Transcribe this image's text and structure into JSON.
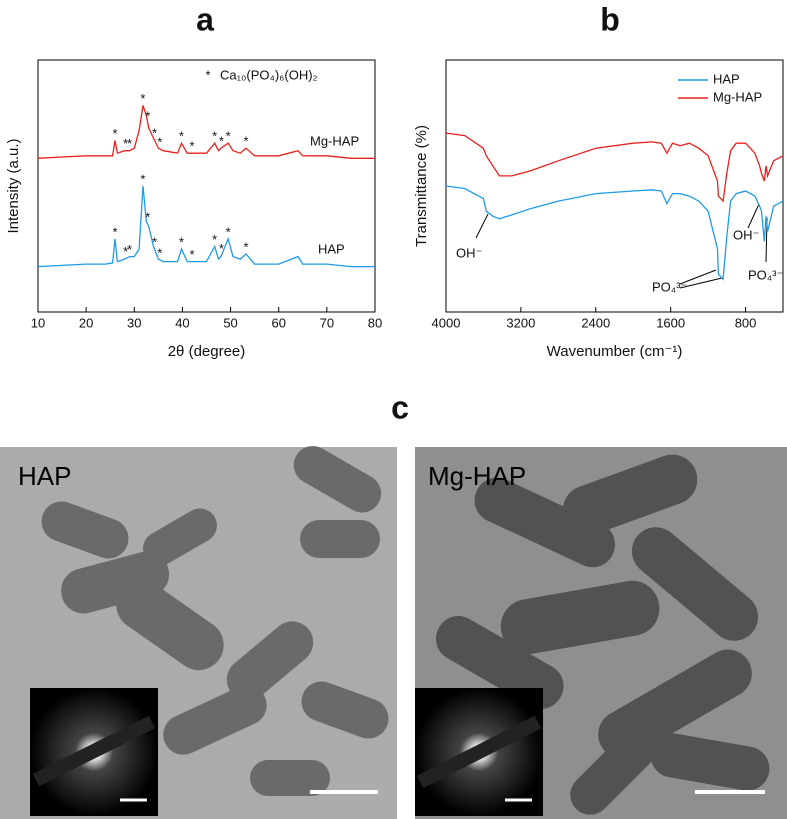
{
  "chart_data": [
    {
      "type": "line",
      "title": "a",
      "x_label": "2θ (degree)",
      "y_label": "Intensity (a.u.)",
      "xlim": [
        10,
        80
      ],
      "xticks": [
        10,
        20,
        30,
        40,
        50,
        60,
        70,
        80
      ],
      "ylim": [
        0,
        100
      ],
      "x": [
        10,
        15,
        20,
        24,
        25.5,
        26,
        26.5,
        28,
        29,
        30,
        31,
        31.8,
        32.5,
        33,
        34,
        35,
        36,
        39,
        39.8,
        41,
        45,
        46.7,
        47.5,
        48,
        49.5,
        50.5,
        52,
        53.2,
        55,
        60,
        64,
        65,
        70,
        75,
        80
      ],
      "series": [
        {
          "name": "HAP",
          "color": "#1f9be6",
          "values": [
            18,
            18.5,
            19,
            19,
            19.5,
            29,
            20,
            21,
            22,
            22,
            25,
            50,
            36,
            34,
            26,
            21,
            20,
            20,
            25,
            20,
            20,
            26,
            21,
            22,
            29,
            22,
            21,
            23,
            19,
            19,
            22,
            19,
            19,
            18,
            18
          ]
        },
        {
          "name": "Mg-HAP",
          "color": "#e8201c",
          "values": [
            61,
            61.5,
            62,
            62,
            62,
            68,
            63,
            64,
            64,
            65,
            72,
            82,
            78,
            73,
            69,
            65,
            64,
            63,
            67,
            63,
            63,
            67,
            64,
            65,
            67,
            64,
            63,
            65,
            62,
            62,
            64,
            62,
            62,
            61,
            61
          ]
        }
      ],
      "peak_marker": "*",
      "marker_legend": "Ca₁₀(PO₄)₆(OH)₂",
      "peak_positions": [
        26,
        28.2,
        29,
        31.8,
        32.8,
        34.2,
        35.3,
        39.8,
        42,
        46.7,
        48.1,
        49.5,
        53.2
      ]
    },
    {
      "type": "line",
      "title": "b",
      "x_label": "Wavenumber (cm⁻¹)",
      "y_label": "Transmittance (%)",
      "xlim": [
        4000,
        400
      ],
      "xticks": [
        4000,
        3200,
        2400,
        1600,
        800
      ],
      "ylim": [
        0,
        100
      ],
      "legend": "upper right",
      "x": [
        4000,
        3800,
        3600,
        3570,
        3500,
        3430,
        3300,
        3100,
        2800,
        2400,
        2000,
        1800,
        1700,
        1640,
        1580,
        1500,
        1400,
        1300,
        1200,
        1100,
        1090,
        1040,
        1000,
        960,
        900,
        800,
        700,
        650,
        630,
        600,
        580,
        565,
        500,
        400
      ],
      "series": [
        {
          "name": "HAP",
          "color": "#1f9be6",
          "values": [
            50,
            49,
            45,
            40,
            38,
            37,
            38.5,
            41,
            44,
            47,
            48,
            48.5,
            48,
            43,
            47,
            47,
            46,
            44,
            40,
            25,
            15,
            13,
            30,
            44,
            47,
            48,
            46,
            42,
            40,
            28,
            38,
            32,
            42,
            44
          ]
        },
        {
          "name": "Mg-HAP",
          "color": "#e8201c",
          "values": [
            71,
            70,
            65,
            62,
            58,
            54,
            54,
            56,
            60,
            65,
            67,
            67.5,
            67,
            63,
            67,
            66,
            67,
            65,
            62,
            52,
            46,
            44,
            55,
            64,
            67,
            67,
            63,
            58,
            55,
            52,
            58,
            54,
            60,
            62
          ]
        }
      ],
      "annotations": [
        "OH⁻",
        "PO₄³⁻",
        "OH⁻",
        "PO₄³⁻"
      ]
    }
  ],
  "figure": {
    "title": "c",
    "images": [
      {
        "label": "HAP"
      },
      {
        "label": "Mg-HAP"
      }
    ]
  }
}
